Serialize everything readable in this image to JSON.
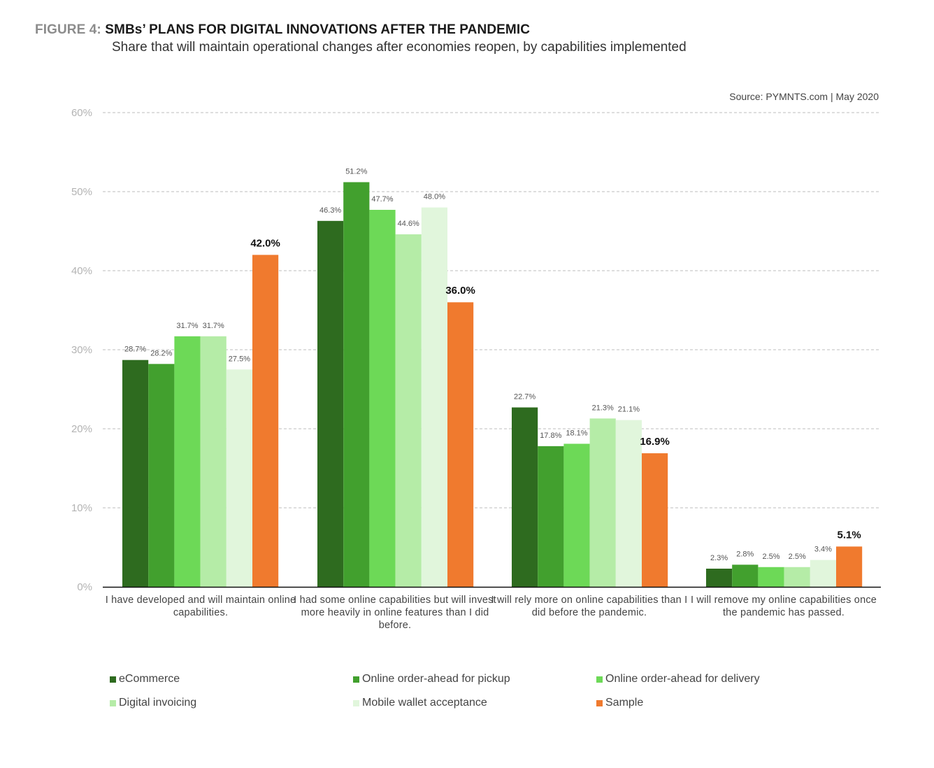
{
  "header": {
    "figure_number": "FIGURE 4:",
    "title": "SMBs’ PLANS FOR DIGITAL INNOVATIONS AFTER THE PANDEMIC",
    "subtitle": "Share that will maintain operational changes after economies reopen, by capabilities implemented",
    "source": "Source: PYMNTS.com  |  May 2020"
  },
  "chart_data": {
    "type": "bar",
    "title": "SMBs’ PLANS FOR DIGITAL INNOVATIONS AFTER THE PANDEMIC",
    "subtitle": "Share that will maintain operational changes after economies reopen, by capabilities implemented",
    "xlabel": "",
    "ylabel": "",
    "ylim": [
      0,
      60
    ],
    "yticks": [
      0,
      10,
      20,
      30,
      40,
      50,
      60
    ],
    "ytick_labels": [
      "0%",
      "10%",
      "20%",
      "30%",
      "40%",
      "50%",
      "60%"
    ],
    "grid": true,
    "legend_position": "bottom",
    "categories": [
      "I have developed and will maintain online capabilities.",
      "I had some online capabilities but will invest more heavily in online features than I did before.",
      "I will rely more on online capabilities than I did before the pandemic.",
      "I will remove my online capabilities once the pandemic has passed."
    ],
    "series": [
      {
        "name": "eCommerce",
        "color": "#2e6b1f",
        "values": [
          28.7,
          46.3,
          22.7,
          2.3
        ],
        "labels": [
          "28.7%",
          "46.3%",
          "22.7%",
          "2.3%"
        ]
      },
      {
        "name": "Online order-ahead for pickup",
        "color": "#42a02e",
        "values": [
          28.2,
          51.2,
          17.8,
          2.8
        ],
        "labels": [
          "28.2%",
          "51.2%",
          "17.8%",
          "2.8%"
        ]
      },
      {
        "name": "Online order-ahead for delivery",
        "color": "#6dd957",
        "values": [
          31.7,
          47.7,
          18.1,
          2.5
        ],
        "labels": [
          "31.7%",
          "47.7%",
          "18.1%",
          "2.5%"
        ]
      },
      {
        "name": "Digital invoicing",
        "color": "#b5eca7",
        "values": [
          31.7,
          44.6,
          21.3,
          2.5
        ],
        "labels": [
          "31.7%",
          "44.6%",
          "21.3%",
          "2.5%"
        ]
      },
      {
        "name": "Mobile wallet acceptance",
        "color": "#e1f6dc",
        "values": [
          27.5,
          48.0,
          21.1,
          3.4
        ],
        "labels": [
          "27.5%",
          "48.0%",
          "21.1%",
          "3.4%"
        ]
      },
      {
        "name": "Sample",
        "color": "#f07a2e",
        "values": [
          42.0,
          36.0,
          16.9,
          5.1
        ],
        "labels": [
          "42.0%",
          "36.0%",
          "16.9%",
          "5.1%"
        ]
      }
    ]
  }
}
